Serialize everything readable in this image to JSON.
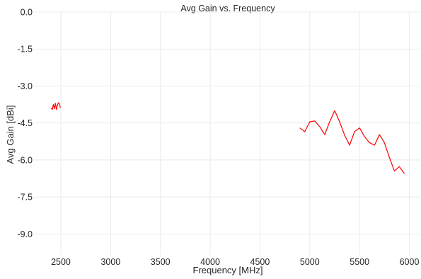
{
  "chart_data": {
    "type": "line",
    "title": "Avg Gain vs. Frequency",
    "xlabel": "Frequency [MHz]",
    "ylabel": "Avg Gain [dBi]",
    "xlim": [
      2230,
      6110
    ],
    "ylim": [
      -9.85,
      0
    ],
    "xticks": [
      2500,
      3000,
      3500,
      4000,
      4500,
      5000,
      5500,
      6000
    ],
    "xtick_labels": [
      "2500",
      "3000",
      "3500",
      "4000",
      "4500",
      "5000",
      "5500",
      "6000"
    ],
    "yticks": [
      0.0,
      -1.5,
      -3.0,
      -4.5,
      -6.0,
      -7.5,
      -9.0
    ],
    "ytick_labels": [
      "0.0",
      "-1.5",
      "-3.0",
      "-4.5",
      "-6.0",
      "-7.5",
      "-9.0"
    ],
    "grid": true,
    "line_color": "#ff0000",
    "series": [
      {
        "x": [
          2400,
          2415,
          2425,
          2435,
          2445,
          2455,
          2465,
          2475,
          2485,
          2495
        ],
        "y": [
          -3.9,
          -3.95,
          -3.75,
          -3.92,
          -3.7,
          -3.95,
          -3.78,
          -3.68,
          -3.72,
          -3.88
        ]
      },
      {
        "x": [
          4900,
          4950,
          5000,
          5050,
          5100,
          5150,
          5200,
          5250,
          5300,
          5350,
          5400,
          5450,
          5500,
          5550,
          5600,
          5650,
          5700,
          5750,
          5800,
          5850,
          5900,
          5950
        ],
        "y": [
          -4.7,
          -4.85,
          -4.45,
          -4.42,
          -4.65,
          -4.97,
          -4.45,
          -4.0,
          -4.45,
          -5.0,
          -5.4,
          -4.85,
          -4.7,
          -5.05,
          -5.3,
          -5.4,
          -4.97,
          -5.3,
          -5.9,
          -6.45,
          -6.27,
          -6.55
        ]
      }
    ]
  }
}
